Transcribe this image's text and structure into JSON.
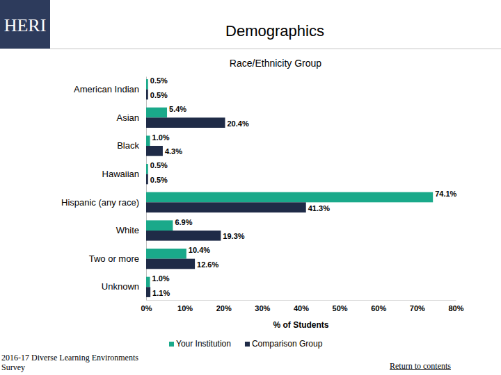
{
  "page": {
    "logo": "HERI",
    "heading": "Demographics",
    "source": "2016-17 Diverse Learning Environments Survey",
    "link": "Return to contents"
  },
  "chart_data": {
    "type": "bar",
    "orientation": "horizontal",
    "title": "Race/Ethnicity Group",
    "x_label": "% of Students",
    "categories": [
      "American Indian",
      "Asian",
      "Black",
      "Hawaiian",
      "Hispanic (any race)",
      "White",
      "Two or more",
      "Unknown"
    ],
    "series": [
      {
        "name": "Your Institution",
        "color": "#1aa98a",
        "values": [
          0.5,
          5.4,
          1.0,
          0.5,
          74.1,
          6.9,
          10.4,
          1.0
        ],
        "value_labels": [
          "0.5%",
          "5.4%",
          "1.0%",
          "0.5%",
          "74.1%",
          "6.9%",
          "10.4%",
          "1.0%"
        ]
      },
      {
        "name": "Comparison Group",
        "color": "#1f2b47",
        "values": [
          0.5,
          20.4,
          4.3,
          0.5,
          41.3,
          19.3,
          12.6,
          1.1
        ],
        "value_labels": [
          "0.5%",
          "20.4%",
          "4.3%",
          "0.5%",
          "41.3%",
          "19.3%",
          "12.6%",
          "1.1%"
        ]
      }
    ],
    "xlim": [
      0,
      80
    ],
    "xticks": [
      {
        "value": 0,
        "label": "0%"
      },
      {
        "value": 10,
        "label": "10%"
      },
      {
        "value": 20,
        "label": "20%"
      },
      {
        "value": 30,
        "label": "30%"
      },
      {
        "value": 40,
        "label": "40%"
      },
      {
        "value": 50,
        "label": "50%"
      },
      {
        "value": 60,
        "label": "60%"
      },
      {
        "value": 70,
        "label": "70%"
      },
      {
        "value": 80,
        "label": "80%"
      }
    ],
    "grid": false,
    "legend": "bottom",
    "data_labels": true
  }
}
